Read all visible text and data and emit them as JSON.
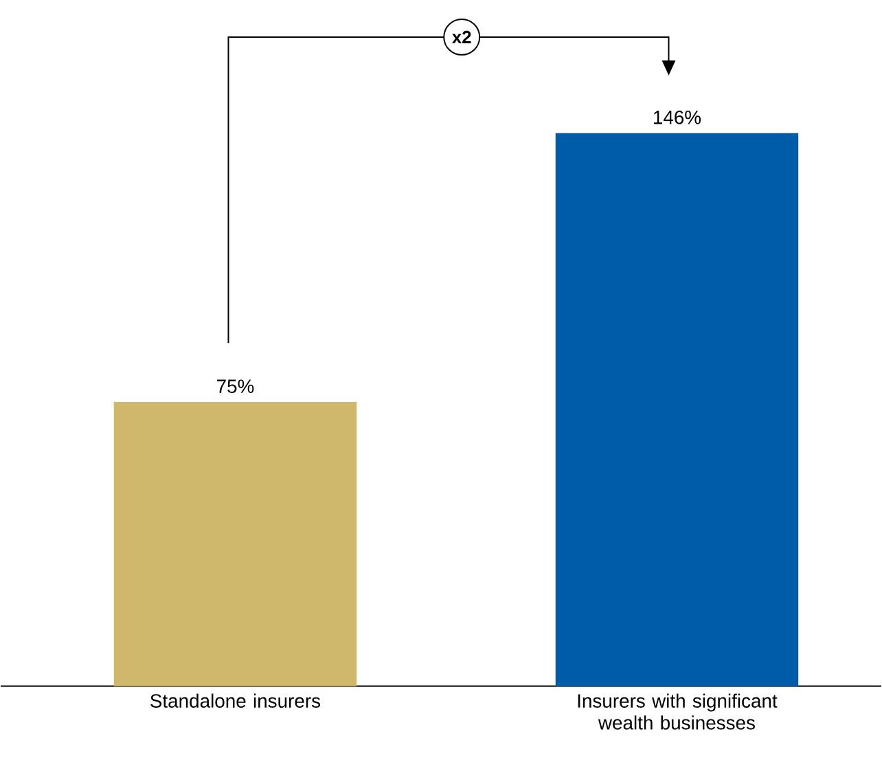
{
  "chart_data": {
    "type": "bar",
    "categories": [
      "Standalone insurers",
      "Insurers with significant wealth businesses"
    ],
    "values": [
      75,
      146
    ],
    "colors": [
      "#cfb76b",
      "#005ca8"
    ],
    "value_labels": [
      "75%",
      "146%"
    ],
    "annotations": [
      "x2"
    ]
  }
}
